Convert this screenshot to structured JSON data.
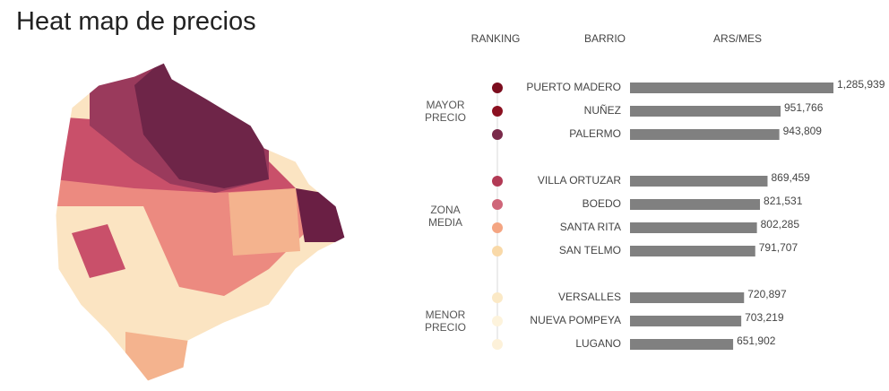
{
  "chart_data": {
    "type": "bar",
    "title": "Heat map de precios",
    "headers": [
      "RANKING",
      "BARRIO",
      "ARS/MES"
    ],
    "bar_color": "#808080",
    "groups": [
      {
        "label": "MAYOR PRECIO",
        "categories": [
          "PUERTO MADERO",
          "NUÑEZ",
          "PALERMO"
        ],
        "values": [
          1285939,
          951766,
          943809
        ],
        "value_labels": [
          "1,285,939",
          "951,766",
          "943,809"
        ],
        "colors": [
          "#7b0d1e",
          "#8b1020",
          "#7a2a4a"
        ]
      },
      {
        "label": "ZONA MEDIA",
        "categories": [
          "VILLA ORTUZAR",
          "BOEDO",
          "SANTA RITA",
          "SAN TELMO"
        ],
        "values": [
          869459,
          821531,
          802285,
          791707
        ],
        "value_labels": [
          "869,459",
          "821,531",
          "802,285",
          "791,707"
        ],
        "colors": [
          "#b23a55",
          "#cf6679",
          "#f4a582",
          "#f9d9a8"
        ]
      },
      {
        "label": "MENOR PRECIO",
        "categories": [
          "VERSALLES",
          "NUEVA POMPEYA",
          "LUGANO"
        ],
        "values": [
          720897,
          703219,
          651902
        ],
        "value_labels": [
          "720,897",
          "703,219",
          "651,902"
        ],
        "colors": [
          "#fbe9c6",
          "#fdf3dc",
          "#fdf1d9"
        ]
      }
    ]
  }
}
